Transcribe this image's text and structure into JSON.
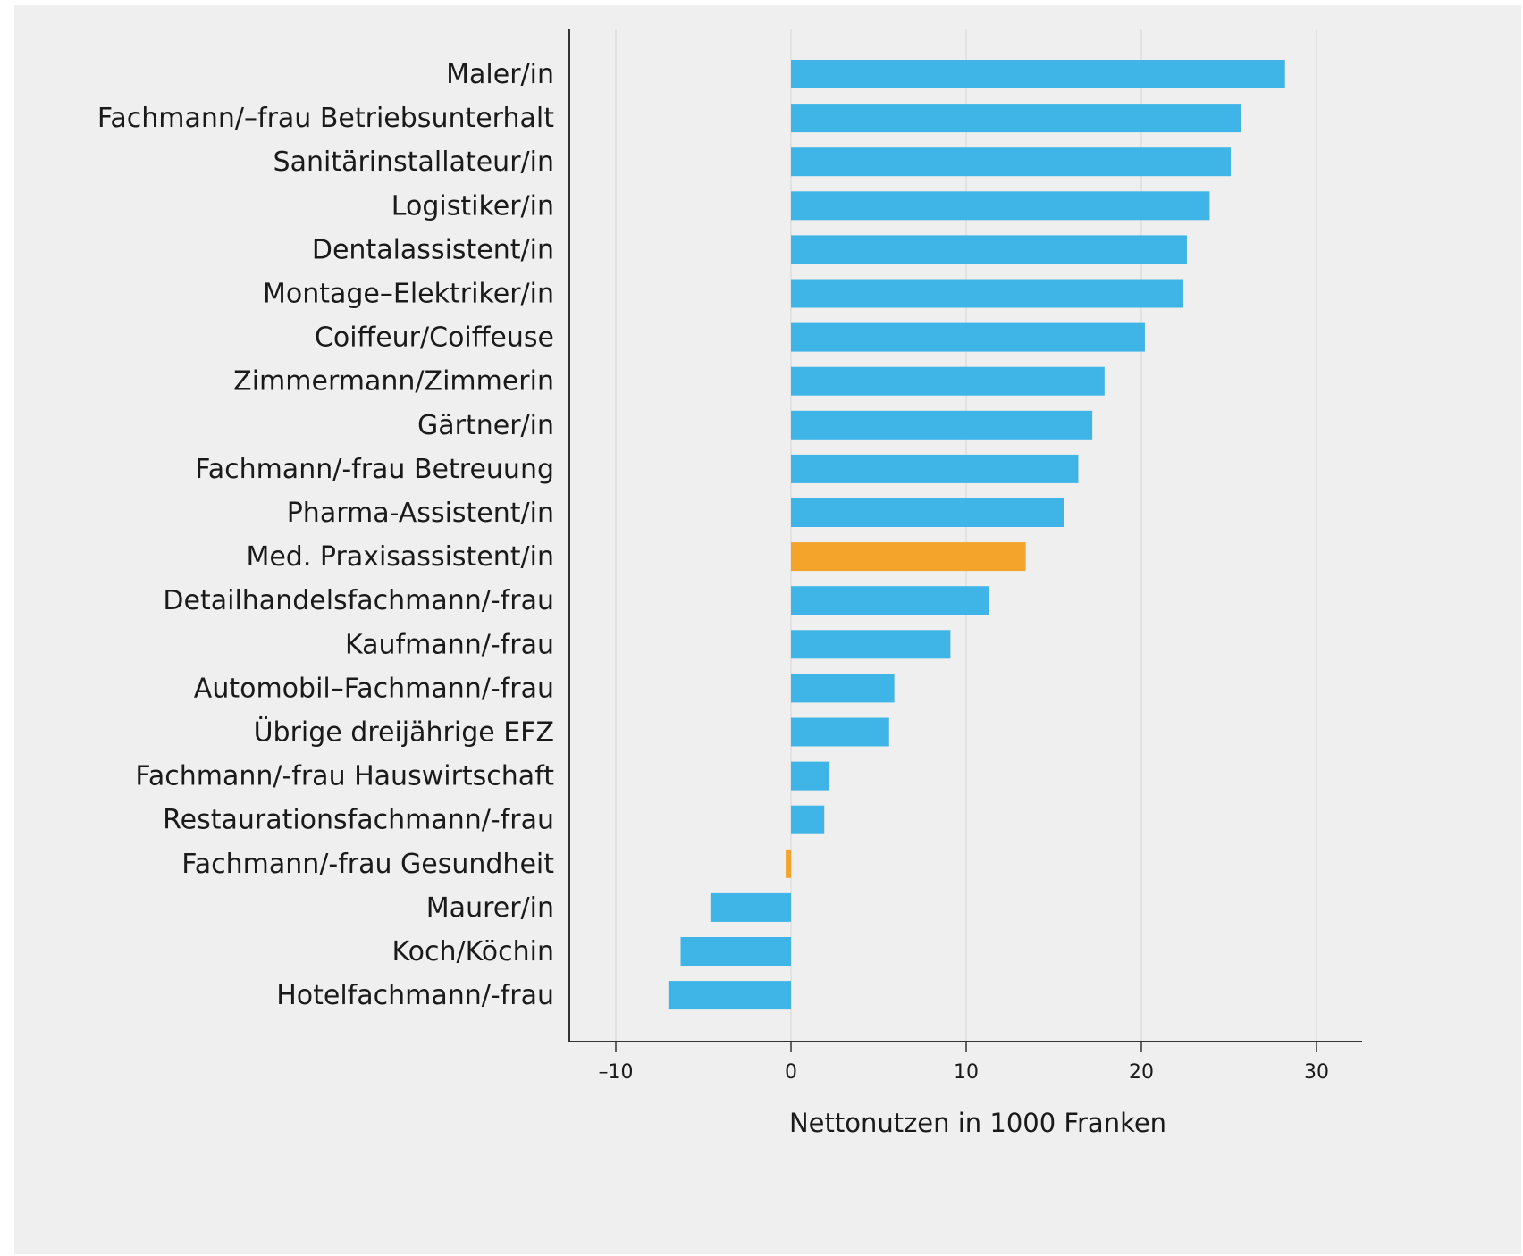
{
  "chart_data": {
    "type": "bar",
    "orientation": "horizontal",
    "title": "",
    "ylabel": "",
    "xlabel": "Nettonutzen in 1000 Franken",
    "xlim": [
      -13,
      33
    ],
    "xticks": [
      -10,
      0,
      10,
      20,
      30
    ],
    "xtick_labels": [
      "–10",
      "0",
      "10",
      "20",
      "30"
    ],
    "grid": "vertical",
    "legend": "none",
    "colors": {
      "default": "#3eb5e6",
      "highlight": "#f4a42b",
      "background": "#efefef",
      "grid": "#d9d9d9",
      "axis": "#333333"
    },
    "categories": [
      "Maler/in",
      "Fachmann/–frau Betriebsunterhalt",
      "Sanitärinstallateur/in",
      "Logistiker/in",
      "Dentalassistent/in",
      "Montage–Elektriker/in",
      "Coiffeur/Coiffeuse",
      "Zimmermann/Zimmerin",
      "Gärtner/in",
      "Fachmann/-frau Betreuung",
      "Pharma-Assistent/in",
      "Med. Praxisassistent/in",
      "Detailhandelsfachmann/-frau",
      "Kaufmann/-frau",
      "Automobil–Fachmann/-frau",
      "Übrige dreijährige EFZ",
      "Fachmann/-frau Hauswirtschaft",
      "Restaurationsfachmann/-frau",
      "Fachmann/-frau Gesundheit",
      "Maurer/in",
      "Koch/Köchin",
      "Hotelfachmann/-frau"
    ],
    "values": [
      28.2,
      25.7,
      25.1,
      23.9,
      22.6,
      22.4,
      20.2,
      17.9,
      17.2,
      16.4,
      15.6,
      13.4,
      11.3,
      9.1,
      5.9,
      5.6,
      2.2,
      1.9,
      -0.3,
      -4.6,
      -6.3,
      -7.0
    ],
    "highlighted": [
      "Med. Praxisassistent/in",
      "Fachmann/-frau Gesundheit"
    ]
  }
}
